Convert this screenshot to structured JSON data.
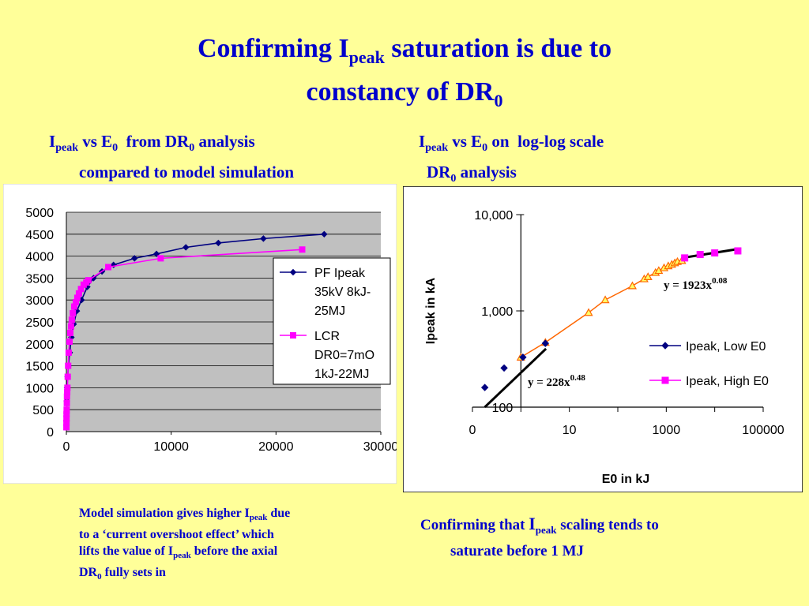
{
  "title": {
    "line1_a": "Confirming I",
    "line1_sub": "peak",
    "line1_b": " saturation is due to",
    "line2_a": "constancy of DR",
    "line2_sub": "0"
  },
  "left_caption": {
    "i": "I",
    "peak": "peak",
    "vs": " vs E",
    "e0": "0",
    "from": "  from DR",
    "dr0": "0",
    "rest1": " analysis",
    "line2": "compared to model simulation"
  },
  "right_caption": {
    "i": "I",
    "peak": "peak",
    "vs": " vs E",
    "e0": "0",
    "rest": " on  log-log scale",
    "line2_a": "DR",
    "line2_sub": "0",
    "line2_b": " analysis"
  },
  "left_note": {
    "t1": "Model simulation gives higher I",
    "s1": "peak",
    "t2": " due",
    "t3": "to a ‘current overshoot effect’ which",
    "t4": "lifts the value of I",
    "s2": "peak",
    "t5": " before the axial",
    "t6": "DR",
    "s3": "0",
    "t7": " fully sets in"
  },
  "right_note": {
    "t1": "Confirming that ",
    "i": "I",
    "peak": "peak",
    "t2": " scaling tends to",
    "t3": "saturate before 1 MJ"
  },
  "chart_data": [
    {
      "type": "line",
      "title": "",
      "xlabel": "",
      "ylabel": "",
      "xlim": [
        0,
        30000
      ],
      "ylim": [
        0,
        5000
      ],
      "x_ticks": [
        "0",
        "10000",
        "20000",
        "30000"
      ],
      "y_ticks": [
        "0",
        "500",
        "1000",
        "1500",
        "2000",
        "2500",
        "3000",
        "3500",
        "4000",
        "4500",
        "5000"
      ],
      "grid": true,
      "legend_placement": "right",
      "series": [
        {
          "name": "PF Ipeak 35kV 8kJ-25MJ",
          "color": "#000080",
          "marker": "diamond",
          "points": [
            [
              8,
              240
            ],
            [
              20,
              420
            ],
            [
              40,
              700
            ],
            [
              70,
              1000
            ],
            [
              120,
              1250
            ],
            [
              200,
              1500
            ],
            [
              320,
              1800
            ],
            [
              480,
              2150
            ],
            [
              700,
              2450
            ],
            [
              1000,
              2750
            ],
            [
              1450,
              3000
            ],
            [
              2000,
              3300
            ],
            [
              2600,
              3500
            ],
            [
              3400,
              3650
            ],
            [
              4500,
              3800
            ],
            [
              6500,
              3950
            ],
            [
              8600,
              4050
            ],
            [
              11400,
              4200
            ],
            [
              14500,
              4300
            ],
            [
              18800,
              4400
            ],
            [
              24600,
              4500
            ]
          ]
        },
        {
          "name": "LCR DR0=7mO 1kJ-22MJ",
          "color": "#ff00ff",
          "marker": "square",
          "points": [
            [
              5,
              100
            ],
            [
              10,
              200
            ],
            [
              15,
              300
            ],
            [
              20,
              400
            ],
            [
              30,
              500
            ],
            [
              45,
              650
            ],
            [
              60,
              800
            ],
            [
              80,
              900
            ],
            [
              100,
              1000
            ],
            [
              130,
              1250
            ],
            [
              170,
              1500
            ],
            [
              220,
              1800
            ],
            [
              300,
              2050
            ],
            [
              380,
              2250
            ],
            [
              450,
              2400
            ],
            [
              520,
              2550
            ],
            [
              620,
              2700
            ],
            [
              750,
              2850
            ],
            [
              900,
              2950
            ],
            [
              1050,
              3050
            ],
            [
              1200,
              3150
            ],
            [
              1400,
              3250
            ],
            [
              1650,
              3350
            ],
            [
              1900,
              3400
            ],
            [
              2100,
              3450
            ],
            [
              4000,
              3750
            ],
            [
              9000,
              3950
            ],
            [
              22500,
              4150
            ]
          ]
        }
      ]
    },
    {
      "type": "line",
      "title": "",
      "xlabel": "E0 in kJ",
      "ylabel": "Ipeak in kA",
      "x_scale": "log",
      "y_scale": "log",
      "xlim": [
        0.1,
        100000
      ],
      "ylim": [
        100,
        10000
      ],
      "x_ticks": [
        "0",
        "10",
        "1000",
        "100000"
      ],
      "y_ticks": [
        "100",
        "1,000",
        "10,000"
      ],
      "grid": false,
      "legend_placement": "right",
      "series": [
        {
          "name": "Ipeak, Low E0",
          "color": "#000080",
          "marker": "diamond",
          "points": [
            [
              0.18,
              160
            ],
            [
              0.45,
              255
            ],
            [
              1.1,
              330
            ],
            [
              3.2,
              460
            ]
          ]
        },
        {
          "name": "Ipeak, High E0",
          "color": "#ff00ff",
          "marker": "square",
          "points": [
            [
              2400,
              3550
            ],
            [
              5000,
              3850
            ],
            [
              10000,
              4000
            ],
            [
              30000,
              4200
            ]
          ]
        },
        {
          "name": "",
          "color": "#ff6600",
          "marker": "triangle",
          "points": [
            [
              1,
              330
            ],
            [
              3.2,
              470
            ],
            [
              25,
              960
            ],
            [
              55,
              1300
            ],
            [
              200,
              1820
            ],
            [
              350,
              2150
            ],
            [
              420,
              2260
            ],
            [
              600,
              2500
            ],
            [
              700,
              2620
            ],
            [
              900,
              2800
            ],
            [
              1100,
              2930
            ],
            [
              1300,
              3040
            ],
            [
              1500,
              3150
            ],
            [
              1700,
              3250
            ],
            [
              2100,
              3330
            ]
          ]
        }
      ],
      "fits": [
        {
          "label": "y = 228x",
          "exp": "0.48",
          "range": [
            0.18,
            3.3
          ]
        },
        {
          "label": "y = 1923x",
          "exp": "0.08",
          "range": [
            2100,
            30000
          ]
        }
      ]
    }
  ]
}
